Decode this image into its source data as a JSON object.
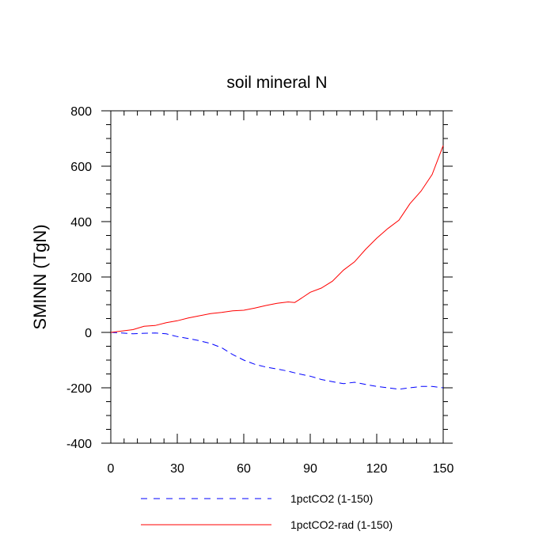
{
  "chart_data": {
    "type": "line",
    "title": "soil mineral N",
    "ylabel": "SMINN  (TgN)",
    "xlabel": "",
    "xlim": [
      0,
      150
    ],
    "ylim": [
      -400,
      800
    ],
    "xticks": [
      0,
      30,
      60,
      90,
      120,
      150
    ],
    "yticks": [
      -400,
      -200,
      0,
      200,
      400,
      600,
      800
    ],
    "grid": false,
    "legend_position": "bottom",
    "series": [
      {
        "name": "1pctCO2 (1-150)",
        "color": "#0000ff",
        "dash": "dashed",
        "points": [
          [
            0,
            0
          ],
          [
            5,
            -2
          ],
          [
            10,
            -5
          ],
          [
            15,
            -3
          ],
          [
            20,
            -2
          ],
          [
            25,
            -5
          ],
          [
            30,
            -15
          ],
          [
            35,
            -22
          ],
          [
            40,
            -30
          ],
          [
            45,
            -40
          ],
          [
            50,
            -55
          ],
          [
            55,
            -80
          ],
          [
            60,
            -100
          ],
          [
            65,
            -115
          ],
          [
            70,
            -125
          ],
          [
            75,
            -132
          ],
          [
            80,
            -140
          ],
          [
            85,
            -150
          ],
          [
            90,
            -158
          ],
          [
            95,
            -170
          ],
          [
            100,
            -178
          ],
          [
            105,
            -185
          ],
          [
            110,
            -180
          ],
          [
            115,
            -188
          ],
          [
            120,
            -195
          ],
          [
            125,
            -200
          ],
          [
            130,
            -205
          ],
          [
            135,
            -200
          ],
          [
            140,
            -195
          ],
          [
            145,
            -195
          ],
          [
            150,
            -200
          ]
        ]
      },
      {
        "name": "1pctCO2-rad (1-150)",
        "color": "#ff0000",
        "dash": "solid",
        "points": [
          [
            0,
            0
          ],
          [
            5,
            5
          ],
          [
            10,
            10
          ],
          [
            15,
            22
          ],
          [
            20,
            25
          ],
          [
            25,
            35
          ],
          [
            30,
            42
          ],
          [
            35,
            52
          ],
          [
            40,
            60
          ],
          [
            45,
            68
          ],
          [
            50,
            72
          ],
          [
            55,
            78
          ],
          [
            60,
            80
          ],
          [
            65,
            88
          ],
          [
            70,
            97
          ],
          [
            75,
            105
          ],
          [
            80,
            110
          ],
          [
            83,
            108
          ],
          [
            85,
            118
          ],
          [
            90,
            145
          ],
          [
            95,
            160
          ],
          [
            100,
            185
          ],
          [
            105,
            225
          ],
          [
            110,
            255
          ],
          [
            115,
            300
          ],
          [
            120,
            340
          ],
          [
            125,
            375
          ],
          [
            130,
            405
          ],
          [
            135,
            465
          ],
          [
            140,
            510
          ],
          [
            145,
            570
          ],
          [
            150,
            675
          ]
        ]
      }
    ]
  }
}
